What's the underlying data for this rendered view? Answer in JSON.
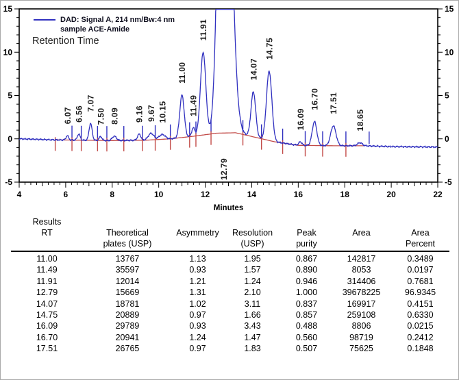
{
  "chart_data": {
    "type": "line",
    "title": "",
    "xlabel": "Minutes",
    "ylabel": "",
    "xlim": [
      4,
      22
    ],
    "ylim": [
      -5,
      15
    ],
    "x_ticks": [
      4,
      6,
      8,
      10,
      12,
      14,
      16,
      18,
      20,
      22
    ],
    "y_ticks": [
      -5,
      0,
      5,
      10,
      15
    ],
    "x_minor_step": 0.25,
    "grid": "off",
    "legend_position": "top-left",
    "legend": {
      "line1": "DAD: Signal A, 214 nm/Bw:4 nm",
      "line2": "sample ACE-Amide"
    },
    "retention_time_label": "Retention Time",
    "trace_color": "#2f2fbf",
    "baseline_color": "#c24b48",
    "peaks": [
      {
        "rt": 6.07,
        "label": "6.07",
        "height": 0.5,
        "sigma": 0.055
      },
      {
        "rt": 6.56,
        "label": "6.56",
        "height": 0.7,
        "sigma": 0.06
      },
      {
        "rt": 7.07,
        "label": "7.07",
        "height": 1.95,
        "sigma": 0.065
      },
      {
        "rt": 7.5,
        "label": "7.50",
        "height": 0.45,
        "sigma": 0.06
      },
      {
        "rt": 8.09,
        "label": "8.09",
        "height": 0.5,
        "sigma": 0.09
      },
      {
        "rt": 9.16,
        "label": "9.16",
        "height": 0.7,
        "sigma": 0.07
      },
      {
        "rt": 9.67,
        "label": "9.67",
        "height": 0.75,
        "sigma": 0.12
      },
      {
        "rt": 10.15,
        "label": "10.15",
        "height": 0.55,
        "sigma": 0.13
      },
      {
        "rt": 11.0,
        "label": "11.00",
        "height": 4.9,
        "sigma": 0.095
      },
      {
        "rt": 11.49,
        "label": "11.49",
        "height": 0.95,
        "sigma": 0.07
      },
      {
        "rt": 11.91,
        "label": "11.91",
        "height": 9.55,
        "sigma": 0.115
      },
      {
        "rt": 12.79,
        "label": "12.79",
        "height": 60.0,
        "sigma": 0.2,
        "sigma_r": 0.27,
        "clipped": true,
        "label_below": true
      },
      {
        "rt": 14.07,
        "label": "14.07",
        "height": 5.2,
        "sigma": 0.1
      },
      {
        "rt": 14.75,
        "label": "14.75",
        "height": 8.0,
        "sigma": 0.115
      },
      {
        "rt": 16.09,
        "label": "16.09",
        "height": 0.4,
        "sigma": 0.07
      },
      {
        "rt": 16.7,
        "label": "16.70",
        "height": 2.75,
        "sigma": 0.1
      },
      {
        "rt": 17.51,
        "label": "17.51",
        "height": 2.3,
        "sigma": 0.115
      },
      {
        "rt": 18.65,
        "label": "18.65",
        "height": 0.35,
        "sigma": 0.1
      }
    ],
    "baseline_points": [
      [
        4,
        0
      ],
      [
        5.5,
        -0.12
      ],
      [
        8,
        -0.2
      ],
      [
        9.5,
        -0.15
      ],
      [
        10.5,
        0
      ],
      [
        11.5,
        0.3
      ],
      [
        12.5,
        0.65
      ],
      [
        13.3,
        0.7
      ],
      [
        14.2,
        0.15
      ],
      [
        15.0,
        -0.35
      ],
      [
        16.0,
        -0.75
      ],
      [
        17.5,
        -0.8
      ],
      [
        18.8,
        -0.8
      ],
      [
        20,
        -0.9
      ],
      [
        22,
        -0.95
      ]
    ],
    "integration_baseline_range": [
      5.55,
      18.9
    ],
    "integration_marks": [
      [
        5.55,
        0,
        1
      ],
      [
        6.27,
        1,
        1
      ],
      [
        6.67,
        1,
        1
      ],
      [
        7.37,
        1,
        1
      ],
      [
        7.77,
        1,
        1
      ],
      [
        8.5,
        1,
        1
      ],
      [
        9.3,
        1,
        1
      ],
      [
        9.85,
        1,
        1
      ],
      [
        10.5,
        1,
        1
      ],
      [
        11.33,
        1,
        1
      ],
      [
        11.6,
        1,
        1
      ],
      [
        12.25,
        1,
        1
      ],
      [
        13.62,
        1,
        1
      ],
      [
        14.42,
        1,
        1
      ],
      [
        15.33,
        1,
        1
      ],
      [
        16.3,
        1,
        1
      ],
      [
        17.05,
        1,
        1
      ],
      [
        18.05,
        1,
        1
      ],
      [
        19.05,
        1,
        0
      ]
    ]
  },
  "table": {
    "columns": [
      {
        "lines": [
          "Results",
          "RT",
          ""
        ]
      },
      {
        "lines": [
          "",
          "Theoretical",
          "plates (USP)"
        ]
      },
      {
        "lines": [
          "",
          "Asymmetry",
          ""
        ]
      },
      {
        "lines": [
          "",
          "Resolution",
          "(USP)"
        ]
      },
      {
        "lines": [
          "",
          "Peak",
          "purity"
        ]
      },
      {
        "lines": [
          "",
          "Area",
          ""
        ]
      },
      {
        "lines": [
          "",
          "Area",
          "Percent"
        ]
      }
    ],
    "rows": [
      [
        "11.00",
        "13767",
        "1.13",
        "1.95",
        "0.867",
        "142817",
        "0.3489"
      ],
      [
        "11.49",
        "35597",
        "0.93",
        "1.57",
        "0.890",
        "8053",
        "0.0197"
      ],
      [
        "11.91",
        "12014",
        "1.21",
        "1.24",
        "0.946",
        "314406",
        "0.7681"
      ],
      [
        "12.79",
        "15669",
        "1.31",
        "2.10",
        "1.000",
        "39678225",
        "96.9345"
      ],
      [
        "14.07",
        "18781",
        "1.02",
        "3.11",
        "0.837",
        "169917",
        "0.4151"
      ],
      [
        "14.75",
        "20889",
        "0.97",
        "1.66",
        "0.857",
        "259108",
        "0.6330"
      ],
      [
        "16.09",
        "29789",
        "0.93",
        "3.43",
        "0.488",
        "8806",
        "0.0215"
      ],
      [
        "16.70",
        "20941",
        "1.24",
        "1.47",
        "0.560",
        "98719",
        "0.2412"
      ],
      [
        "17.51",
        "26765",
        "0.97",
        "1.83",
        "0.507",
        "75625",
        "0.1848"
      ]
    ]
  }
}
